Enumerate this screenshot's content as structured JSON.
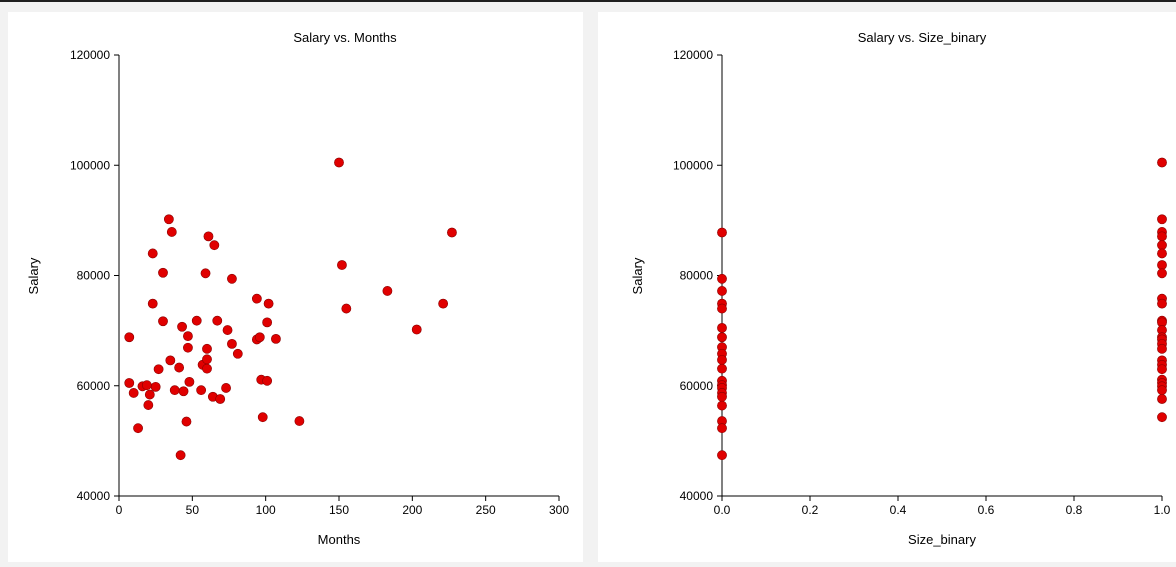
{
  "colors": {
    "marker": "#e00000",
    "marker_edge": "#8a0000",
    "axis": "#000000"
  },
  "chart_data": [
    {
      "type": "scatter",
      "title": "Salary vs. Months",
      "xlabel": "Months",
      "ylabel": "Salary",
      "xlim": [
        0,
        300
      ],
      "ylim": [
        40000,
        120000
      ],
      "xticks": [
        "0",
        "50",
        "100",
        "150",
        "200",
        "250",
        "300"
      ],
      "yticks": [
        "40000",
        "60000",
        "80000",
        "100000",
        "120000"
      ],
      "grid": false,
      "points": [
        [
          7,
          68800
        ],
        [
          7,
          60500
        ],
        [
          10,
          58700
        ],
        [
          13,
          52300
        ],
        [
          16,
          59900
        ],
        [
          19,
          60100
        ],
        [
          20,
          56500
        ],
        [
          21,
          58400
        ],
        [
          23,
          84000
        ],
        [
          23,
          74900
        ],
        [
          25,
          59800
        ],
        [
          27,
          63000
        ],
        [
          30,
          80500
        ],
        [
          30,
          71700
        ],
        [
          34,
          90200
        ],
        [
          35,
          64600
        ],
        [
          36,
          87900
        ],
        [
          38,
          59200
        ],
        [
          41,
          63300
        ],
        [
          42,
          47400
        ],
        [
          43,
          70700
        ],
        [
          44,
          59000
        ],
        [
          46,
          53500
        ],
        [
          47,
          69000
        ],
        [
          47,
          66900
        ],
        [
          48,
          60700
        ],
        [
          53,
          71800
        ],
        [
          56,
          59200
        ],
        [
          57,
          63800
        ],
        [
          59,
          80400
        ],
        [
          60,
          66700
        ],
        [
          60,
          64800
        ],
        [
          60,
          63100
        ],
        [
          61,
          87100
        ],
        [
          64,
          58000
        ],
        [
          65,
          85500
        ],
        [
          67,
          71800
        ],
        [
          69,
          57600
        ],
        [
          73,
          59600
        ],
        [
          74,
          70100
        ],
        [
          77,
          79400
        ],
        [
          77,
          67600
        ],
        [
          81,
          65800
        ],
        [
          94,
          75800
        ],
        [
          94,
          68400
        ],
        [
          96,
          68800
        ],
        [
          97,
          61100
        ],
        [
          98,
          54300
        ],
        [
          101,
          60900
        ],
        [
          101,
          71500
        ],
        [
          102,
          74900
        ],
        [
          107,
          68500
        ],
        [
          123,
          53600
        ],
        [
          150,
          100500
        ],
        [
          152,
          81900
        ],
        [
          155,
          74000
        ],
        [
          183,
          77200
        ],
        [
          203,
          70200
        ],
        [
          221,
          74900
        ],
        [
          227,
          87800
        ]
      ]
    },
    {
      "type": "scatter",
      "title": "Salary vs. Size_binary",
      "xlabel": "Size_binary",
      "ylabel": "Salary",
      "xlim": [
        0,
        1
      ],
      "ylim": [
        40000,
        120000
      ],
      "xticks": [
        "0.0",
        "0.2",
        "0.4",
        "0.6",
        "0.8",
        "1.0"
      ],
      "yticks": [
        "40000",
        "60000",
        "80000",
        "100000",
        "120000"
      ],
      "grid": false,
      "points": [
        [
          0,
          87800
        ],
        [
          0,
          79400
        ],
        [
          0,
          77200
        ],
        [
          0,
          74900
        ],
        [
          0,
          74000
        ],
        [
          0,
          70500
        ],
        [
          0,
          68800
        ],
        [
          0,
          67000
        ],
        [
          0,
          65800
        ],
        [
          0,
          64700
        ],
        [
          0,
          63100
        ],
        [
          0,
          60900
        ],
        [
          0,
          60100
        ],
        [
          0,
          59600
        ],
        [
          0,
          58700
        ],
        [
          0,
          58000
        ],
        [
          0,
          56400
        ],
        [
          0,
          53600
        ],
        [
          0,
          52300
        ],
        [
          0,
          47400
        ],
        [
          1,
          100500
        ],
        [
          1,
          90200
        ],
        [
          1,
          87900
        ],
        [
          1,
          87100
        ],
        [
          1,
          85500
        ],
        [
          1,
          84000
        ],
        [
          1,
          81900
        ],
        [
          1,
          80400
        ],
        [
          1,
          75800
        ],
        [
          1,
          74900
        ],
        [
          1,
          71800
        ],
        [
          1,
          71500
        ],
        [
          1,
          70100
        ],
        [
          1,
          68800
        ],
        [
          1,
          68400
        ],
        [
          1,
          67600
        ],
        [
          1,
          66700
        ],
        [
          1,
          64600
        ],
        [
          1,
          63800
        ],
        [
          1,
          63000
        ],
        [
          1,
          61100
        ],
        [
          1,
          60500
        ],
        [
          1,
          59900
        ],
        [
          1,
          59200
        ],
        [
          1,
          57600
        ],
        [
          1,
          54300
        ]
      ]
    }
  ]
}
